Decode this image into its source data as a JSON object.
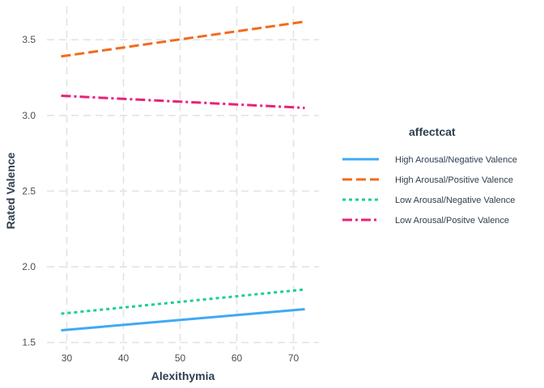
{
  "chart_data": {
    "type": "line",
    "xlabel": "Alexithymia",
    "ylabel": "Rated Valence",
    "xlim": [
      26.5,
      74.5
    ],
    "ylim": [
      1.45,
      3.72
    ],
    "xticks": [
      30,
      40,
      50,
      60,
      70
    ],
    "yticks": [
      1.5,
      2.0,
      2.5,
      3.0,
      3.5
    ],
    "ytick_labels": [
      "1.5",
      "2.0",
      "2.5",
      "3.0",
      "3.5"
    ],
    "xtick_labels": [
      "30",
      "40",
      "50",
      "60",
      "70"
    ],
    "grid": true,
    "grid_style": "dashed",
    "legend_title": "affectcat",
    "legend_position": "right",
    "x": [
      29,
      72
    ],
    "series": [
      {
        "name": "High Arousal/Negative Valence",
        "values": [
          1.58,
          1.72
        ],
        "color": "#3fa9f5",
        "dash": "solid"
      },
      {
        "name": "High Arousal/Positive Valence",
        "values": [
          3.39,
          3.62
        ],
        "color": "#f26b1d",
        "dash": "longdash"
      },
      {
        "name": "Low Arousal/Negative Valence",
        "values": [
          1.69,
          1.85
        ],
        "color": "#1fcf8f",
        "dash": "dotted"
      },
      {
        "name": "Low Arousal/Positve Valence",
        "values": [
          3.13,
          3.05
        ],
        "color": "#ec1f7a",
        "dash": "dotdash"
      }
    ]
  }
}
